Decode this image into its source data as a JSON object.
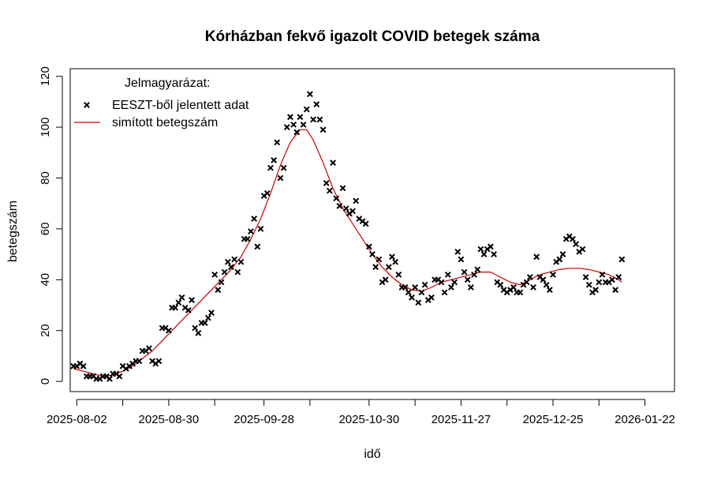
{
  "chart_data": {
    "type": "scatter",
    "title": "Kórházban fekvő igazolt COVID betegek száma",
    "xlabel": "idő",
    "ylabel": "betegszám",
    "x_start": "2025-08-01",
    "x_range_days": [
      -1,
      183
    ],
    "ylim": [
      -4,
      123
    ],
    "y_ticks": [
      0,
      20,
      40,
      60,
      80,
      100,
      120
    ],
    "x_ticks": [
      {
        "day": 1,
        "label": "2025-08-02"
      },
      {
        "day": 29,
        "label": "2025-08-30"
      },
      {
        "day": 58,
        "label": "2025-09-28"
      },
      {
        "day": 90,
        "label": "2025-10-30"
      },
      {
        "day": 118,
        "label": "2025-11-27"
      },
      {
        "day": 146,
        "label": "2025-12-25"
      },
      {
        "day": 174,
        "label": "2026-01-22"
      }
    ],
    "minor_x_ticks": [
      15,
      43,
      72,
      104,
      132,
      160
    ],
    "legend": {
      "title": "Jelmagyarázat:",
      "position": "top-left",
      "items": [
        {
          "label": "EESZT-ből jelentett adat",
          "kind": "points",
          "color": "#000000"
        },
        {
          "label": "simított betegszám",
          "kind": "line",
          "color": "#cc0000"
        }
      ]
    },
    "series": [
      {
        "name": "EESZT-ből jelentett adat",
        "kind": "points",
        "marker": "x",
        "color": "#000000",
        "points": [
          [
            0,
            6
          ],
          [
            1,
            6
          ],
          [
            2,
            7
          ],
          [
            3,
            6
          ],
          [
            4,
            2
          ],
          [
            5,
            2
          ],
          [
            6,
            2
          ],
          [
            7,
            1
          ],
          [
            8,
            1
          ],
          [
            9,
            2
          ],
          [
            10,
            2
          ],
          [
            11,
            1
          ],
          [
            12,
            3
          ],
          [
            13,
            3
          ],
          [
            14,
            2
          ],
          [
            15,
            6
          ],
          [
            16,
            5
          ],
          [
            17,
            6
          ],
          [
            18,
            7
          ],
          [
            19,
            8
          ],
          [
            20,
            8
          ],
          [
            21,
            12
          ],
          [
            22,
            12
          ],
          [
            23,
            13
          ],
          [
            24,
            8
          ],
          [
            25,
            7
          ],
          [
            26,
            8
          ],
          [
            27,
            21
          ],
          [
            28,
            21
          ],
          [
            29,
            20
          ],
          [
            30,
            29
          ],
          [
            31,
            29
          ],
          [
            32,
            31
          ],
          [
            33,
            33
          ],
          [
            34,
            29
          ],
          [
            35,
            28
          ],
          [
            36,
            32
          ],
          [
            37,
            21
          ],
          [
            38,
            19
          ],
          [
            39,
            23
          ],
          [
            40,
            23
          ],
          [
            41,
            25
          ],
          [
            42,
            27
          ],
          [
            43,
            42
          ],
          [
            44,
            36
          ],
          [
            45,
            39
          ],
          [
            46,
            43
          ],
          [
            47,
            47
          ],
          [
            48,
            45
          ],
          [
            49,
            48
          ],
          [
            50,
            43
          ],
          [
            51,
            47
          ],
          [
            52,
            56
          ],
          [
            53,
            56
          ],
          [
            54,
            59
          ],
          [
            55,
            64
          ],
          [
            56,
            53
          ],
          [
            57,
            60
          ],
          [
            58,
            73
          ],
          [
            59,
            74
          ],
          [
            60,
            84
          ],
          [
            61,
            87
          ],
          [
            62,
            94
          ],
          [
            63,
            80
          ],
          [
            64,
            84
          ],
          [
            65,
            100
          ],
          [
            66,
            104
          ],
          [
            67,
            101
          ],
          [
            68,
            98
          ],
          [
            69,
            104
          ],
          [
            70,
            101
          ],
          [
            71,
            107
          ],
          [
            72,
            113
          ],
          [
            73,
            103
          ],
          [
            74,
            109
          ],
          [
            75,
            103
          ],
          [
            76,
            99
          ],
          [
            77,
            78
          ],
          [
            78,
            75
          ],
          [
            79,
            86
          ],
          [
            80,
            72
          ],
          [
            81,
            69
          ],
          [
            82,
            76
          ],
          [
            83,
            68
          ],
          [
            84,
            66
          ],
          [
            85,
            67
          ],
          [
            86,
            71
          ],
          [
            87,
            64
          ],
          [
            88,
            63
          ],
          [
            89,
            62
          ],
          [
            90,
            53
          ],
          [
            91,
            50
          ],
          [
            92,
            45
          ],
          [
            93,
            48
          ],
          [
            94,
            39
          ],
          [
            95,
            40
          ],
          [
            96,
            45
          ],
          [
            97,
            49
          ],
          [
            98,
            47
          ],
          [
            99,
            42
          ],
          [
            100,
            37
          ],
          [
            101,
            37
          ],
          [
            102,
            35
          ],
          [
            103,
            33
          ],
          [
            104,
            37
          ],
          [
            105,
            31
          ],
          [
            106,
            35
          ],
          [
            107,
            38
          ],
          [
            108,
            32
          ],
          [
            109,
            33
          ],
          [
            110,
            40
          ],
          [
            111,
            40
          ],
          [
            112,
            39
          ],
          [
            113,
            35
          ],
          [
            114,
            42
          ],
          [
            115,
            37
          ],
          [
            116,
            39
          ],
          [
            117,
            51
          ],
          [
            118,
            48
          ],
          [
            119,
            43
          ],
          [
            120,
            40
          ],
          [
            121,
            37
          ],
          [
            122,
            42
          ],
          [
            123,
            44
          ],
          [
            124,
            52
          ],
          [
            125,
            50
          ],
          [
            126,
            52
          ],
          [
            127,
            53
          ],
          [
            128,
            50
          ],
          [
            129,
            39
          ],
          [
            130,
            38
          ],
          [
            131,
            36
          ],
          [
            132,
            35
          ],
          [
            133,
            36
          ],
          [
            134,
            37
          ],
          [
            135,
            35
          ],
          [
            136,
            35
          ],
          [
            137,
            38
          ],
          [
            138,
            39
          ],
          [
            139,
            41
          ],
          [
            140,
            37
          ],
          [
            141,
            49
          ],
          [
            142,
            41
          ],
          [
            143,
            40
          ],
          [
            144,
            38
          ],
          [
            145,
            36
          ],
          [
            146,
            42
          ],
          [
            147,
            47
          ],
          [
            148,
            48
          ],
          [
            149,
            50
          ],
          [
            150,
            56
          ],
          [
            151,
            57
          ],
          [
            152,
            56
          ],
          [
            153,
            54
          ],
          [
            154,
            51
          ],
          [
            155,
            52
          ],
          [
            156,
            41
          ],
          [
            157,
            38
          ],
          [
            158,
            35
          ],
          [
            159,
            36
          ],
          [
            160,
            39
          ],
          [
            161,
            42
          ],
          [
            162,
            39
          ],
          [
            163,
            39
          ],
          [
            164,
            40
          ],
          [
            165,
            36
          ],
          [
            166,
            41
          ],
          [
            167,
            48
          ]
        ]
      },
      {
        "name": "simított betegszám",
        "kind": "line",
        "color": "#cc0000",
        "points": [
          [
            0,
            5
          ],
          [
            3,
            4
          ],
          [
            6,
            3
          ],
          [
            9,
            2
          ],
          [
            12,
            2.5
          ],
          [
            15,
            4
          ],
          [
            18,
            6
          ],
          [
            21,
            9
          ],
          [
            24,
            12
          ],
          [
            27,
            16
          ],
          [
            30,
            20
          ],
          [
            33,
            24
          ],
          [
            36,
            28
          ],
          [
            39,
            32
          ],
          [
            42,
            36
          ],
          [
            45,
            40
          ],
          [
            48,
            44
          ],
          [
            51,
            49
          ],
          [
            54,
            56
          ],
          [
            57,
            64
          ],
          [
            60,
            74
          ],
          [
            63,
            85
          ],
          [
            66,
            94
          ],
          [
            69,
            99
          ],
          [
            71,
            99
          ],
          [
            73,
            95
          ],
          [
            76,
            86
          ],
          [
            79,
            76
          ],
          [
            82,
            68
          ],
          [
            85,
            62
          ],
          [
            88,
            56
          ],
          [
            91,
            50
          ],
          [
            94,
            45
          ],
          [
            97,
            41
          ],
          [
            100,
            38
          ],
          [
            103,
            36
          ],
          [
            106,
            35.5
          ],
          [
            109,
            37
          ],
          [
            112,
            39
          ],
          [
            115,
            40
          ],
          [
            118,
            41
          ],
          [
            121,
            42
          ],
          [
            124,
            43
          ],
          [
            127,
            43
          ],
          [
            130,
            41
          ],
          [
            133,
            39
          ],
          [
            136,
            38
          ],
          [
            139,
            40
          ],
          [
            142,
            42
          ],
          [
            145,
            43
          ],
          [
            148,
            44
          ],
          [
            151,
            44.5
          ],
          [
            154,
            44.5
          ],
          [
            157,
            44
          ],
          [
            160,
            43
          ],
          [
            163,
            42
          ],
          [
            166,
            40
          ],
          [
            167,
            39
          ]
        ]
      }
    ]
  }
}
